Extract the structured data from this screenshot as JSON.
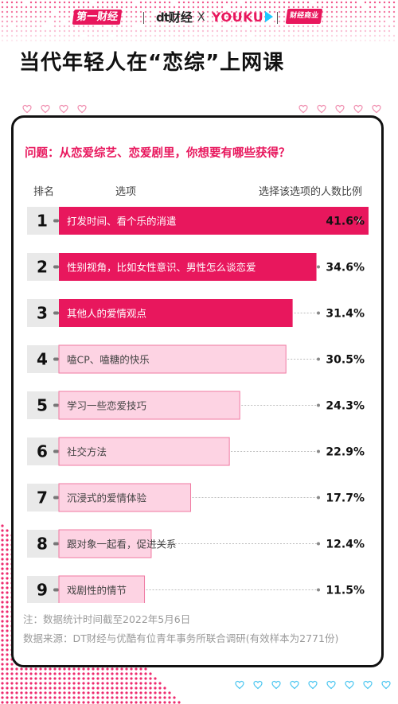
{
  "header": {
    "logo_yicai": "第一财经",
    "logo_dt_mark": "dt",
    "logo_dt_text": "财经",
    "logo_x": "X",
    "logo_youku": "YOUKU",
    "logo_badge": "财经商业"
  },
  "title": "当代年轻人在“恋综”上网课",
  "question": "问题：从恋爱综艺、恋爱剧里，你想要有哪些获得？",
  "columns": {
    "rank": "排名",
    "option": "选项",
    "ratio": "选择该选项的人数比例"
  },
  "chart_data": {
    "type": "bar",
    "orientation": "horizontal",
    "categories": [
      "打发时间、看个乐的消遣",
      "性别视角，比如女性意识、男性怎么谈恋爱",
      "其他人的爱情观点",
      "嗑CP、嗑糖的快乐",
      "学习一些恋爱技巧",
      "社交方法",
      "沉浸式的爱情体验",
      "跟对象一起看，促进关系",
      "戏剧性的情节"
    ],
    "ranks": [
      "1",
      "2",
      "3",
      "4",
      "5",
      "6",
      "7",
      "8",
      "9"
    ],
    "values": [
      41.6,
      34.6,
      31.4,
      30.5,
      24.3,
      22.9,
      17.7,
      12.4,
      11.5
    ],
    "value_labels": [
      "41.6%",
      "34.6%",
      "31.4%",
      "30.5%",
      "24.3%",
      "22.9%",
      "17.7%",
      "12.4%",
      "11.5%"
    ],
    "unit": "%",
    "colors": {
      "strong": "#e8175d",
      "strong_text": "#ffffff",
      "light": "#fdd3e3",
      "light_border": "#f07aa2",
      "light_text": "#444444"
    },
    "strong_count": 3
  },
  "footer": {
    "note": "注：数据统计时间截至2022年5月6日",
    "source": "数据来源：DT财经与优酷有位青年事务所联合调研(有效样本为2771份)"
  },
  "colors": {
    "accent": "#e8175d",
    "dots": "#ee2a6e",
    "hearts": "#f08fb0",
    "hearts_bottom": "#4cc6f0"
  }
}
